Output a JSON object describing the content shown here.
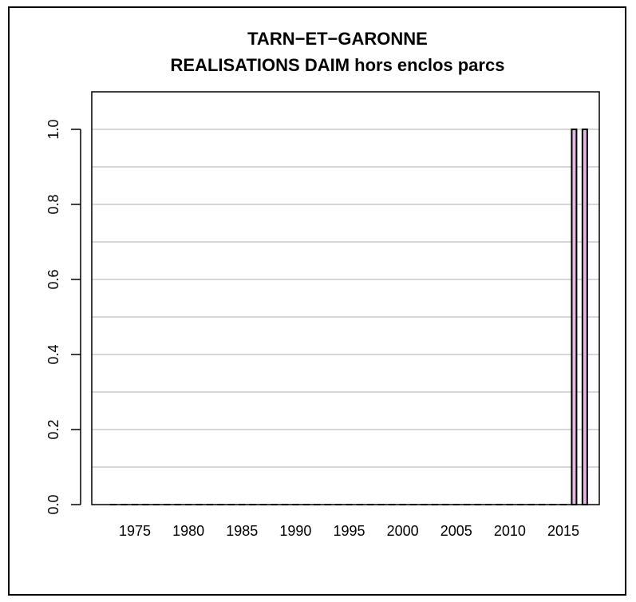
{
  "chart_data": {
    "type": "bar",
    "title": "TARN−ET−GARONNE",
    "subtitle": "REALISATIONS DAIM hors enclos parcs",
    "xlabel": "",
    "ylabel": "",
    "x": [
      1973,
      1974,
      1975,
      1976,
      1977,
      1978,
      1979,
      1980,
      1981,
      1982,
      1983,
      1984,
      1985,
      1986,
      1987,
      1988,
      1989,
      1990,
      1991,
      1992,
      1993,
      1994,
      1995,
      1996,
      1997,
      1998,
      1999,
      2000,
      2001,
      2002,
      2003,
      2004,
      2005,
      2006,
      2007,
      2008,
      2009,
      2010,
      2011,
      2012,
      2013,
      2014,
      2015,
      2016,
      2017
    ],
    "values": [
      0,
      0,
      0,
      0,
      0,
      0,
      0,
      0,
      0,
      0,
      0,
      0,
      0,
      0,
      0,
      0,
      0,
      0,
      0,
      0,
      0,
      0,
      0,
      0,
      0,
      0,
      0,
      0,
      0,
      0,
      0,
      0,
      0,
      0,
      0,
      0,
      0,
      0,
      0,
      0,
      0,
      0,
      0,
      1,
      1
    ],
    "xticks": [
      "1975",
      "1980",
      "1985",
      "1990",
      "1995",
      "2000",
      "2005",
      "2010",
      "2015"
    ],
    "yticks": [
      "0.0",
      "0.2",
      "0.4",
      "0.6",
      "0.8",
      "1.0"
    ],
    "ylim": [
      0,
      1.1
    ],
    "grid": true,
    "bar_color": "#e2b8e2"
  }
}
